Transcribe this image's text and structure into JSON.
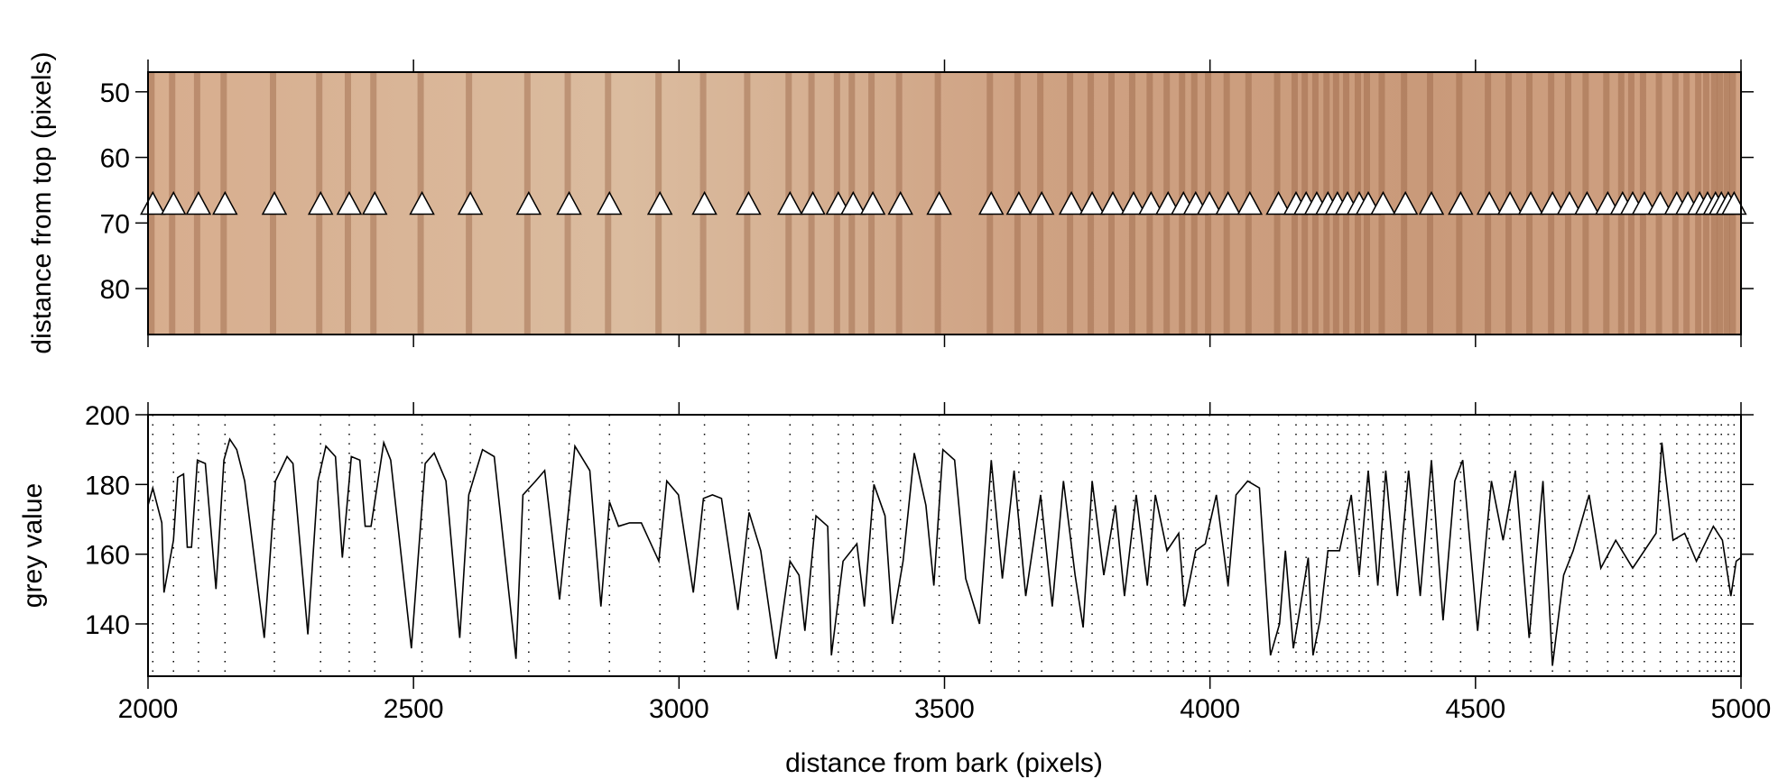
{
  "chart_data": [
    {
      "type": "scatter",
      "ylabel": "distance from top (pixels)",
      "marker": "triangle",
      "marker_color": "#ffffff",
      "xlim": [
        2000,
        5000
      ],
      "xticks": [
        2000,
        2500,
        3000,
        3500,
        4000,
        4500,
        5000
      ],
      "ylim": [
        87,
        47
      ],
      "yticks": [
        50,
        60,
        70,
        80
      ],
      "x": [
        2009,
        2048,
        2095,
        2145,
        2238,
        2325,
        2379,
        2427,
        2516,
        2607,
        2717,
        2793,
        2869,
        2964,
        3048,
        3131,
        3209,
        3252,
        3300,
        3328,
        3365,
        3417,
        3490,
        3588,
        3640,
        3683,
        3739,
        3778,
        3817,
        3856,
        3889,
        3921,
        3950,
        3973,
        3999,
        4034,
        4075,
        4129,
        4162,
        4181,
        4201,
        4222,
        4240,
        4259,
        4281,
        4298,
        4326,
        4368,
        4417,
        4472,
        4526,
        4565,
        4604,
        4645,
        4677,
        4710,
        4749,
        4777,
        4796,
        4818,
        4848,
        4879,
        4900,
        4922,
        4937,
        4952,
        4963,
        4976,
        4987
      ],
      "values": [
        67,
        67,
        67,
        67,
        67,
        67,
        67,
        67,
        67,
        67,
        67,
        67,
        67,
        67,
        67,
        67,
        67,
        67,
        67,
        67,
        67,
        67,
        67,
        67,
        67,
        67,
        67,
        67,
        67,
        67,
        67,
        67,
        67,
        67,
        67,
        67,
        67,
        67,
        67,
        67,
        67,
        67,
        67,
        67,
        67,
        67,
        67,
        67,
        67,
        67,
        67,
        67,
        67,
        67,
        67,
        67,
        67,
        67,
        67,
        67,
        67,
        67,
        67,
        67,
        67,
        67,
        67,
        67,
        67
      ]
    },
    {
      "type": "line",
      "ylabel": "grey value",
      "xlabel": "distance from bark (pixels)",
      "color": "#000000",
      "xlim": [
        2000,
        5000
      ],
      "xticks": [
        2000,
        2500,
        3000,
        3500,
        4000,
        4500,
        5000
      ],
      "ylim": [
        125,
        200
      ],
      "yticks": [
        140,
        160,
        180,
        200
      ],
      "x": [
        2000,
        2009,
        2026,
        2030,
        2048,
        2056,
        2067,
        2074,
        2082,
        2093,
        2108,
        2128,
        2143,
        2154,
        2167,
        2182,
        2219,
        2240,
        2262,
        2273,
        2301,
        2320,
        2335,
        2353,
        2366,
        2383,
        2399,
        2409,
        2420,
        2444,
        2457,
        2496,
        2522,
        2539,
        2561,
        2587,
        2604,
        2630,
        2652,
        2693,
        2706,
        2730,
        2747,
        2775,
        2804,
        2832,
        2853,
        2869,
        2886,
        2907,
        2929,
        2962,
        2977,
        2999,
        3027,
        3046,
        3063,
        3080,
        3111,
        3132,
        3154,
        3183,
        3209,
        3226,
        3237,
        3258,
        3280,
        3287,
        3309,
        3335,
        3349,
        3367,
        3388,
        3402,
        3422,
        3443,
        3465,
        3480,
        3497,
        3519,
        3540,
        3566,
        3588,
        3609,
        3631,
        3653,
        3681,
        3703,
        3724,
        3746,
        3761,
        3778,
        3800,
        3822,
        3839,
        3861,
        3882,
        3897,
        3919,
        3941,
        3952,
        3973,
        3991,
        4012,
        4034,
        4049,
        4071,
        4093,
        4114,
        4131,
        4142,
        4157,
        4168,
        4185,
        4194,
        4207,
        4222,
        4244,
        4266,
        4281,
        4298,
        4316,
        4331,
        4353,
        4374,
        4396,
        4417,
        4439,
        4461,
        4476,
        4504,
        4530,
        4552,
        4575,
        4601,
        4627,
        4645,
        4666,
        4684,
        4714,
        4736,
        4764,
        4796,
        4840,
        4851,
        4872,
        4894,
        4916,
        4948,
        4965,
        4981,
        4991,
        5000
      ],
      "values": [
        174,
        179,
        169,
        149,
        164,
        182,
        183,
        162,
        162,
        187,
        186,
        150,
        187,
        193,
        190,
        181,
        136,
        181,
        188,
        186,
        137,
        181,
        191,
        188,
        159,
        188,
        187,
        168,
        168,
        192,
        187,
        133,
        186,
        189,
        181,
        136,
        177,
        190,
        188,
        130,
        177,
        181,
        184,
        147,
        191,
        184,
        145,
        175,
        168,
        169,
        169,
        158,
        181,
        177,
        149,
        176,
        177,
        176,
        144,
        172,
        161,
        130,
        158,
        154,
        138,
        171,
        168,
        131,
        158,
        163,
        145,
        180,
        171,
        140,
        158,
        189,
        174,
        151,
        190,
        187,
        153,
        140,
        187,
        153,
        184,
        148,
        177,
        145,
        181,
        154,
        139,
        181,
        154,
        174,
        148,
        177,
        151,
        177,
        161,
        166,
        145,
        161,
        163,
        177,
        151,
        177,
        181,
        179,
        131,
        140,
        161,
        133,
        143,
        159,
        131,
        141,
        161,
        161,
        177,
        154,
        184,
        151,
        184,
        148,
        184,
        148,
        187,
        141,
        181,
        187,
        138,
        181,
        164,
        184,
        136,
        181,
        128,
        154,
        161,
        177,
        156,
        164,
        156,
        166,
        192,
        164,
        166,
        158,
        168,
        164,
        148,
        158,
        159
      ]
    }
  ]
}
